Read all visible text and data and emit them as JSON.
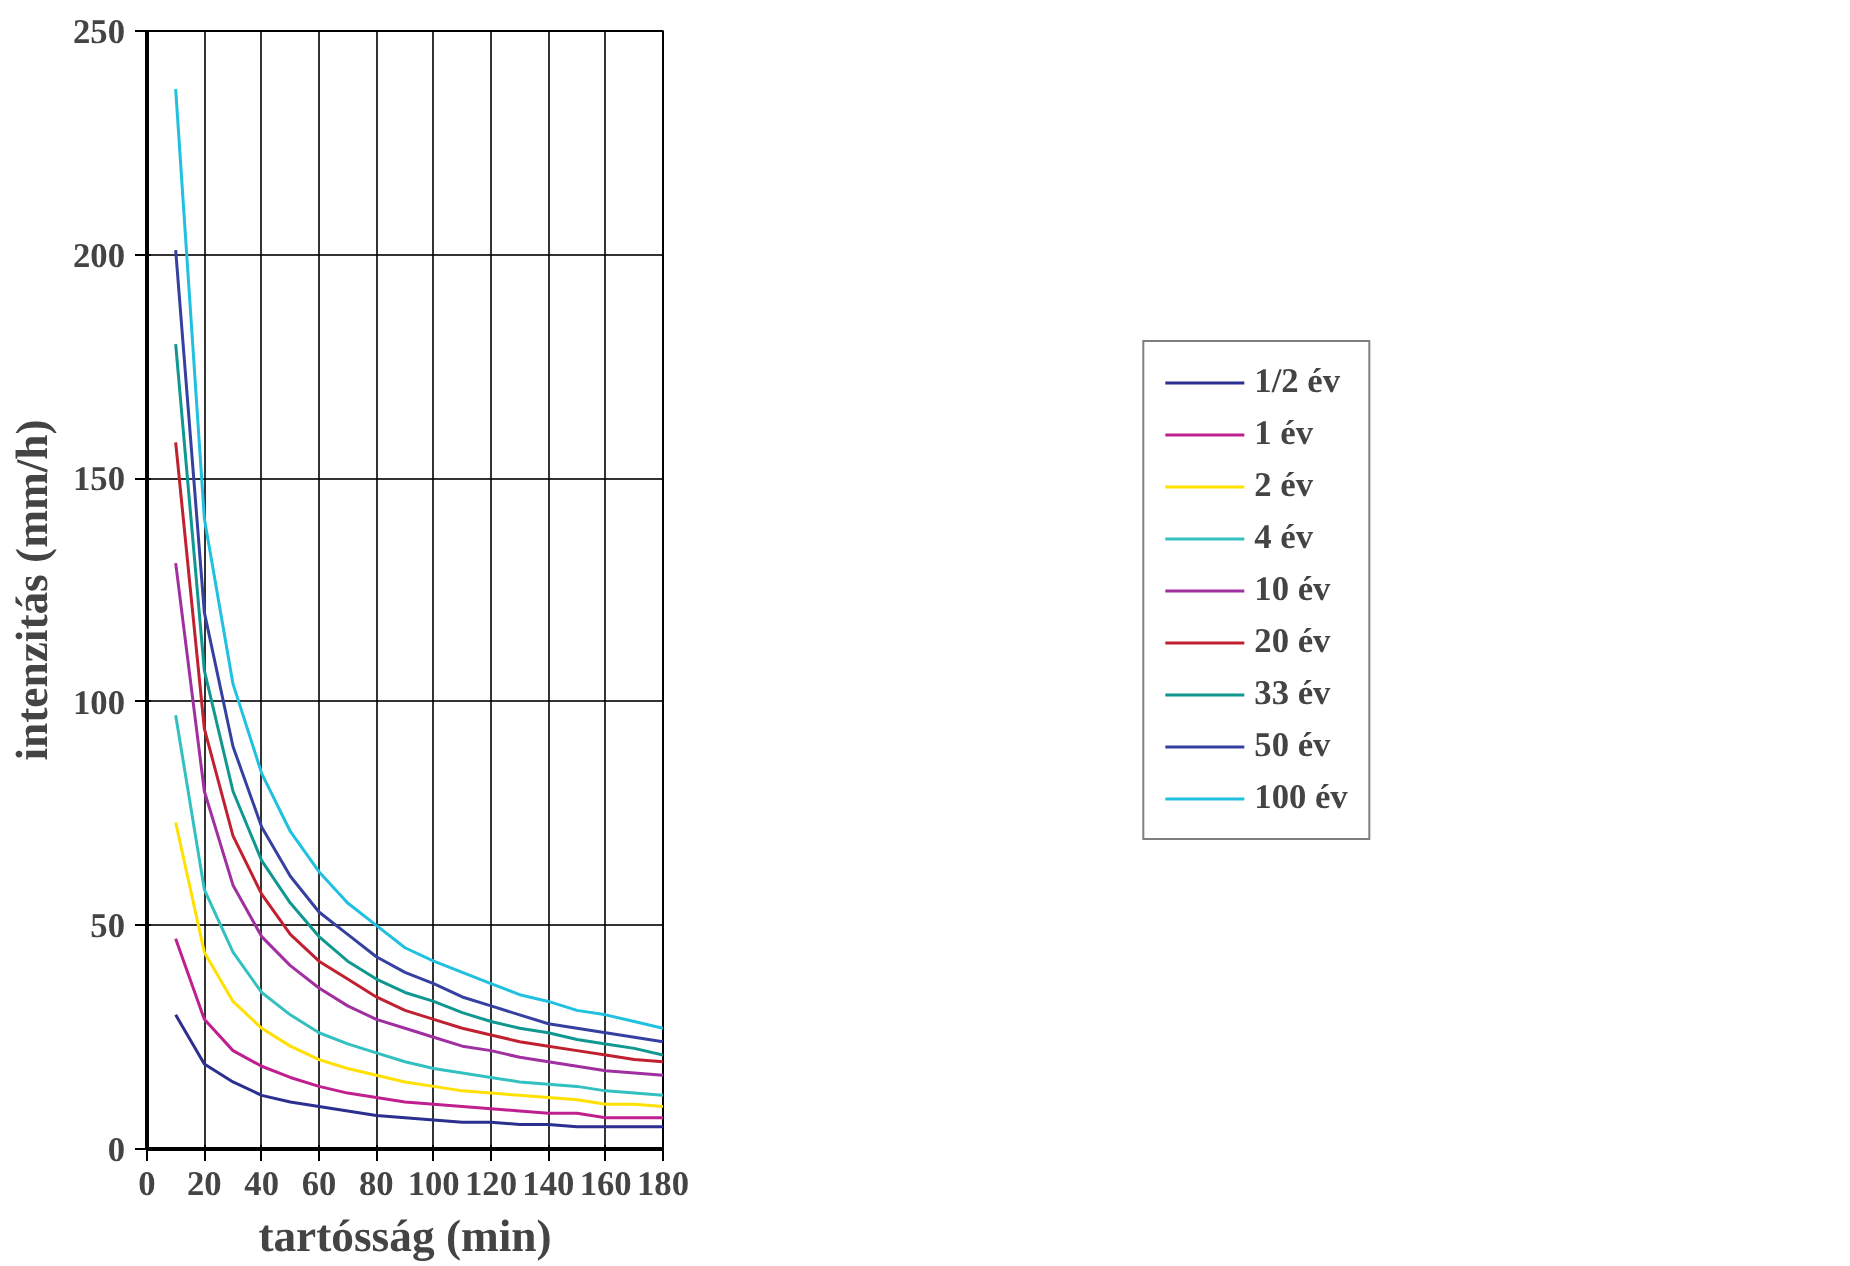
{
  "chart_data": {
    "type": "line",
    "xlabel": "tartósság (min)",
    "ylabel": "intenzitás (mm/h)",
    "x": [
      10,
      20,
      30,
      40,
      50,
      60,
      70,
      80,
      90,
      100,
      110,
      120,
      130,
      140,
      150,
      160,
      170,
      180
    ],
    "xlim": [
      0,
      180
    ],
    "xticks": [
      0,
      20,
      40,
      60,
      80,
      100,
      120,
      140,
      160,
      180
    ],
    "ylim": [
      0,
      250
    ],
    "yticks": [
      0,
      50,
      100,
      150,
      200,
      250
    ],
    "grid": true,
    "legend": "right",
    "marker": "none",
    "line_style": "solid",
    "series": [
      {
        "name": "1/2 év",
        "color": "#2b2f8f",
        "values": [
          30,
          19,
          15,
          12,
          10.5,
          9.5,
          8.5,
          7.5,
          7,
          6.5,
          6,
          6,
          5.5,
          5.5,
          5,
          5,
          5,
          5
        ]
      },
      {
        "name": "1 év",
        "color": "#c0208f",
        "values": [
          47,
          29,
          22,
          18.5,
          16,
          14,
          12.5,
          11.5,
          10.5,
          10,
          9.5,
          9,
          8.5,
          8,
          8,
          7,
          7,
          7
        ]
      },
      {
        "name": "2 év",
        "color": "#ffe000",
        "values": [
          73,
          44,
          33,
          27,
          23,
          20,
          18,
          16.5,
          15,
          14,
          13,
          12.5,
          12,
          11.5,
          11,
          10,
          10,
          9.5
        ]
      },
      {
        "name": "4 év",
        "color": "#33c0c0",
        "values": [
          97,
          58,
          44,
          35,
          30,
          26,
          23.5,
          21.5,
          19.5,
          18,
          17,
          16,
          15,
          14.5,
          14,
          13,
          12.5,
          12
        ]
      },
      {
        "name": "10 év",
        "color": "#a030a0",
        "values": [
          131,
          80,
          59,
          47.5,
          41,
          36,
          32,
          29,
          27,
          25,
          23,
          22,
          20.5,
          19.5,
          18.5,
          17.5,
          17,
          16.5
        ]
      },
      {
        "name": "20 év",
        "color": "#c02030",
        "values": [
          158,
          94,
          70,
          57,
          48,
          42,
          38,
          34,
          31,
          29,
          27,
          25.5,
          24,
          23,
          22,
          21,
          20,
          19.5
        ]
      },
      {
        "name": "33 év",
        "color": "#109890",
        "values": [
          180,
          107,
          80,
          64.5,
          55,
          47.5,
          42,
          38,
          35,
          33,
          30.5,
          28.5,
          27,
          26,
          24.5,
          23.5,
          22.5,
          21
        ]
      },
      {
        "name": "50 év",
        "color": "#3540a0",
        "values": [
          201,
          120,
          90,
          72,
          61,
          53,
          48,
          43,
          39.5,
          37,
          34,
          32,
          30,
          28,
          27,
          26,
          25,
          24
        ]
      },
      {
        "name": "100 év",
        "color": "#20c0e0",
        "values": [
          237,
          141,
          104,
          84,
          71,
          62,
          55,
          50,
          45,
          42,
          39.5,
          37,
          34.5,
          33,
          31,
          30,
          28.5,
          27
        ]
      }
    ]
  }
}
